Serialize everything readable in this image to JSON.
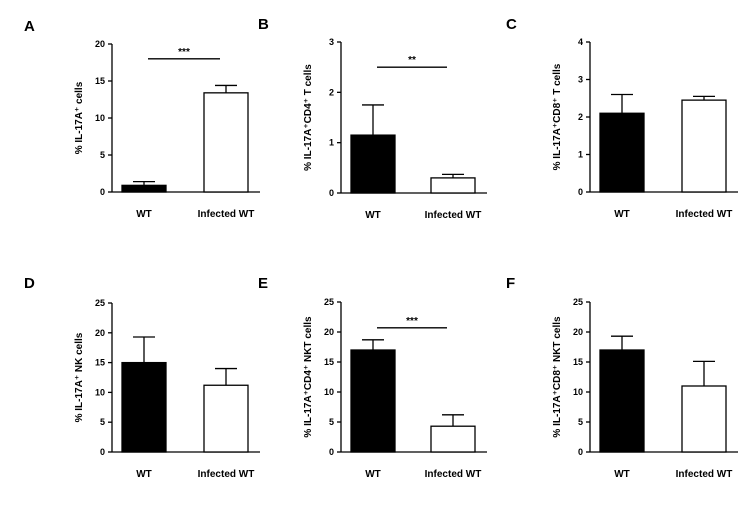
{
  "chart_data": [
    {
      "type": "bar",
      "panel": "A",
      "categories": [
        "WT",
        "Infected WT"
      ],
      "values": [
        0.9,
        13.4
      ],
      "errors": [
        0.5,
        1.0
      ],
      "ylabel": "% IL-17A⁺ cells",
      "ylim": [
        0,
        20
      ],
      "yticks": [
        0,
        5,
        10,
        15,
        20
      ],
      "significance": "***",
      "fills": [
        "#000000",
        "#ffffff"
      ]
    },
    {
      "type": "bar",
      "panel": "B",
      "categories": [
        "WT",
        "Infected WT"
      ],
      "values": [
        1.15,
        0.3
      ],
      "errors": [
        0.6,
        0.07
      ],
      "ylabel": "% IL-17A⁺CD4⁺ T cells",
      "ylim": [
        0,
        3
      ],
      "yticks": [
        0,
        1,
        2,
        3
      ],
      "significance": "**",
      "fills": [
        "#000000",
        "#ffffff"
      ]
    },
    {
      "type": "bar",
      "panel": "C",
      "categories": [
        "WT",
        "Infected WT"
      ],
      "values": [
        2.1,
        2.45
      ],
      "errors": [
        0.5,
        0.1
      ],
      "ylabel": "% IL-17A⁺CD8⁺ T cells",
      "ylim": [
        0,
        4
      ],
      "yticks": [
        0,
        1,
        2,
        3,
        4
      ],
      "significance": "",
      "fills": [
        "#000000",
        "#ffffff"
      ]
    },
    {
      "type": "bar",
      "panel": "D",
      "categories": [
        "WT",
        "Infected WT"
      ],
      "values": [
        15.0,
        11.2
      ],
      "errors": [
        4.3,
        2.8
      ],
      "ylabel": "% IL-17A⁺ NK cells",
      "ylim": [
        0,
        25
      ],
      "yticks": [
        0,
        5,
        10,
        15,
        20,
        25
      ],
      "significance": "",
      "fills": [
        "#000000",
        "#ffffff"
      ]
    },
    {
      "type": "bar",
      "panel": "E",
      "categories": [
        "WT",
        "Infected WT"
      ],
      "values": [
        17.0,
        4.3
      ],
      "errors": [
        1.7,
        1.9
      ],
      "ylabel": "% IL-17A⁺CD4⁺ NKT cells",
      "ylim": [
        0,
        25
      ],
      "yticks": [
        0,
        5,
        10,
        15,
        20,
        25
      ],
      "significance": "***",
      "fills": [
        "#000000",
        "#ffffff"
      ]
    },
    {
      "type": "bar",
      "panel": "F",
      "categories": [
        "WT",
        "Infected WT"
      ],
      "values": [
        17.0,
        11.0
      ],
      "errors": [
        2.3,
        4.1
      ],
      "ylabel": "% IL-17A⁺CD8⁺ NKT cells",
      "ylim": [
        0,
        25
      ],
      "yticks": [
        0,
        5,
        10,
        15,
        20,
        25
      ],
      "significance": "",
      "fills": [
        "#000000",
        "#ffffff"
      ]
    }
  ]
}
